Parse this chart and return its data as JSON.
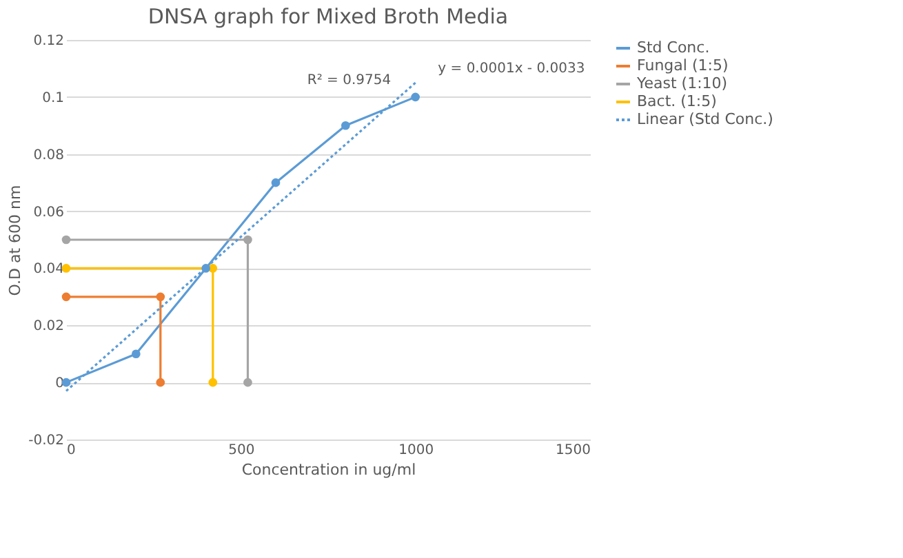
{
  "chart_data": {
    "type": "line",
    "title": "DNSA graph for Mixed Broth Media",
    "xlabel": "Concentration in ug/ml",
    "ylabel": "O.D at 600 nm",
    "xlim": [
      0,
      1500
    ],
    "xticks": [
      0,
      500,
      1000,
      1500
    ],
    "ylim": [
      -0.02,
      0.12
    ],
    "yticks": [
      -0.02,
      0,
      0.02,
      0.04,
      0.06,
      0.08,
      0.1,
      0.12
    ],
    "grid": "y",
    "legend": "right",
    "marker": "circle",
    "series": [
      {
        "name": "Std Conc.",
        "color": "#5b9bd5",
        "x": [
          0,
          200,
          400,
          600,
          800,
          1000
        ],
        "values": [
          0,
          0.01,
          0.04,
          0.07,
          0.09,
          0.1
        ]
      },
      {
        "name": "Fungal (1:5)",
        "color": "#ed7d31",
        "x": [
          0,
          270,
          270
        ],
        "values": [
          0.03,
          0.03,
          0
        ]
      },
      {
        "name": "Yeast (1:10)",
        "color": "#a5a5a5",
        "x": [
          0,
          520,
          520
        ],
        "values": [
          0.05,
          0.05,
          0
        ]
      },
      {
        "name": "Bact. (1:5)",
        "color": "#ffc000",
        "x": [
          0,
          420,
          420
        ],
        "values": [
          0.04,
          0.04,
          0
        ]
      },
      {
        "name": "Linear (Std Conc.)",
        "color": "#5b9bd5",
        "x": [
          0,
          1000
        ],
        "values": [
          -0.003,
          0.105
        ],
        "line_style": "dotted",
        "marker": "none"
      }
    ],
    "annotations": [
      "R² = 0.9754",
      "y = 0.0001x - 0.0033"
    ]
  }
}
